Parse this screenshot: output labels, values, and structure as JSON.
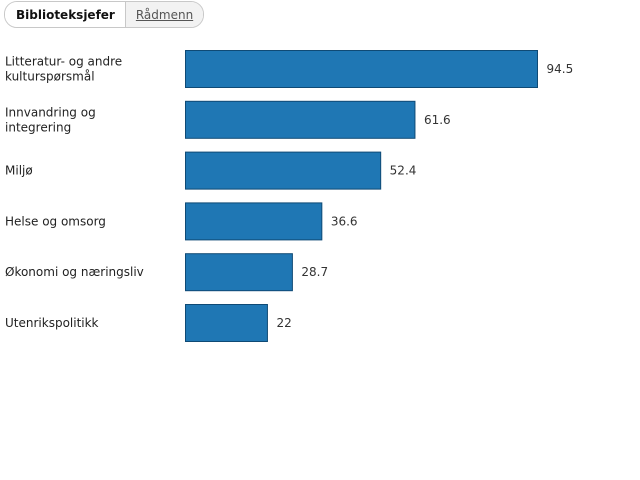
{
  "tabs": [
    {
      "label": "Biblioteksjefer",
      "active": true
    },
    {
      "label": "Rådmenn",
      "active": false
    }
  ],
  "chart_data": {
    "type": "bar",
    "orientation": "horizontal",
    "categories": [
      [
        "Litteratur- og andre",
        "kulturspørsmål"
      ],
      [
        "Innvandring og",
        "integrering"
      ],
      [
        "Miljø"
      ],
      [
        "Helse og omsorg"
      ],
      [
        "Økonomi og næringsliv"
      ],
      [
        "Utenrikspolitikk"
      ]
    ],
    "values": [
      94.5,
      61.6,
      52.4,
      36.6,
      28.7,
      22
    ],
    "value_labels": [
      "94.5",
      "61.6",
      "52.4",
      "36.6",
      "28.7",
      "22"
    ],
    "bar_color": "#1f77b4",
    "bar_stroke": "#0f4a75",
    "grid": false,
    "legend": "none"
  }
}
